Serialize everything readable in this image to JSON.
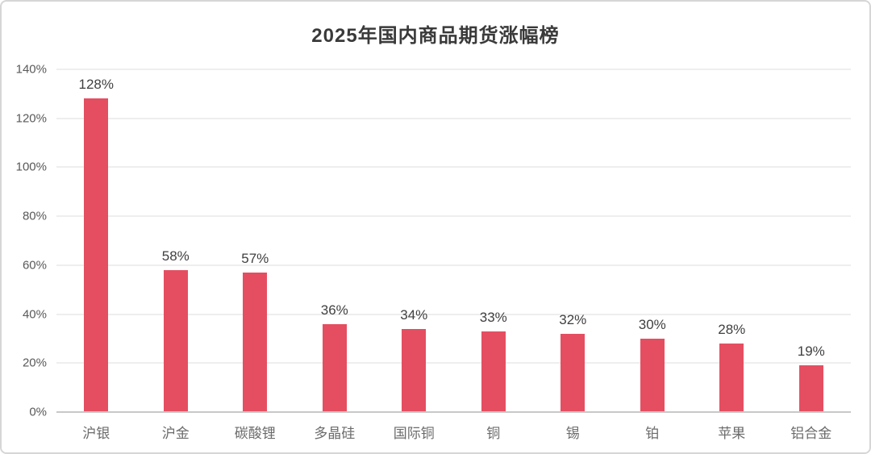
{
  "chart_data": {
    "type": "bar",
    "title": "2025年国内商品期货涨幅榜",
    "categories": [
      "沪银",
      "沪金",
      "碳酸锂",
      "多晶硅",
      "国际铜",
      "铜",
      "锡",
      "铂",
      "苹果",
      "铝合金"
    ],
    "values": [
      128,
      58,
      57,
      36,
      34,
      33,
      32,
      30,
      28,
      19
    ],
    "value_labels": [
      "128%",
      "58%",
      "57%",
      "36%",
      "34%",
      "33%",
      "32%",
      "30%",
      "28%",
      "19%"
    ],
    "xlabel": "",
    "ylabel": "",
    "ylim": [
      0,
      140
    ],
    "y_ticks": [
      0,
      20,
      40,
      60,
      80,
      100,
      120,
      140
    ],
    "y_tick_labels": [
      "0%",
      "20%",
      "40%",
      "60%",
      "80%",
      "100%",
      "120%",
      "140%"
    ],
    "grid": "horizontal-only",
    "legend": "none",
    "bar_color": "#e54e61"
  },
  "colors": {
    "bar": "#e54e61",
    "title_text": "#3a3a3a",
    "value_label_text": "#3f3f3f",
    "y_tick_text": "#595959",
    "x_label_text": "#6b6b6b",
    "gridline": "#eeeeee",
    "axis_line": "#c8c8c8",
    "frame_border": "#d6d6d6",
    "background": "#ffffff"
  }
}
